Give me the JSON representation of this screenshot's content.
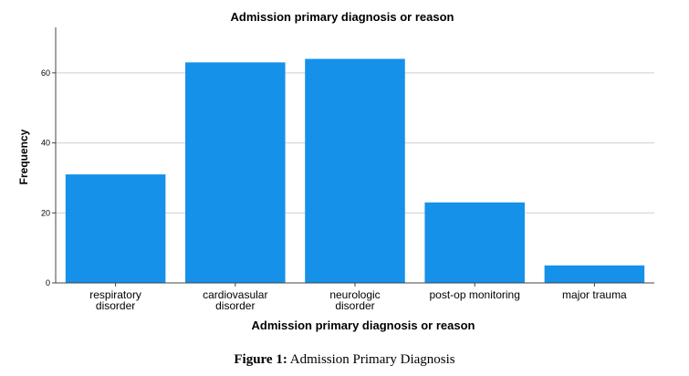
{
  "chart_data": {
    "type": "bar",
    "title": "Admission primary diagnosis or reason",
    "xlabel": "Admission primary diagnosis or reason",
    "ylabel": "Frequency",
    "categories": [
      [
        "respiratory",
        "disorder"
      ],
      [
        "cardiovasular",
        "disorder"
      ],
      [
        "neurologic",
        "disorder"
      ],
      [
        "post-op monitoring"
      ],
      [
        "major trauma"
      ]
    ],
    "values": [
      31,
      63,
      64,
      23,
      5
    ],
    "ylim": [
      0,
      73
    ],
    "yticks": [
      0,
      20,
      40,
      60
    ],
    "grid": true,
    "bar_color": "#1591ea"
  },
  "caption": {
    "label": "Figure 1:",
    "text": "Admission Primary Diagnosis"
  }
}
